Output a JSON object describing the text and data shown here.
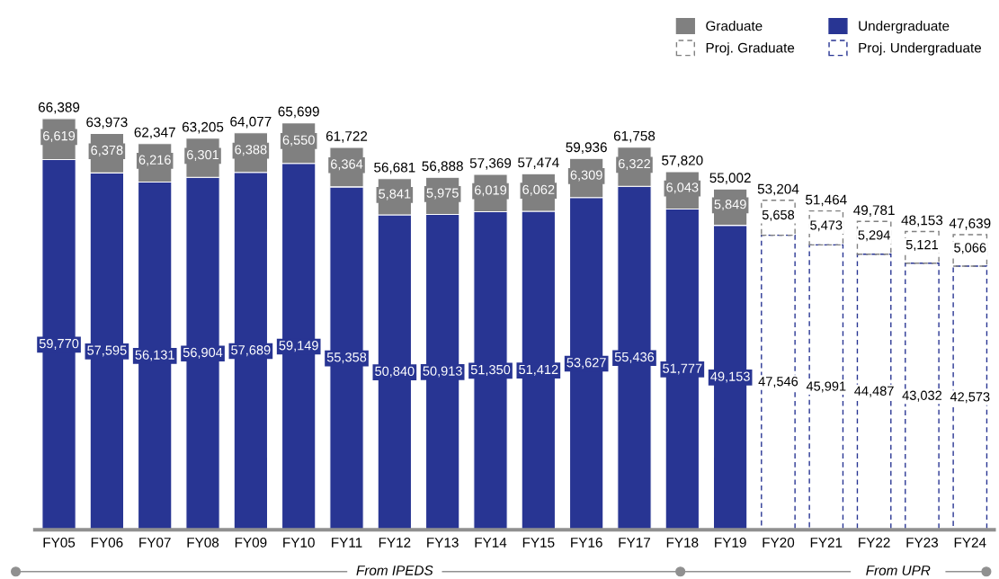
{
  "chart_data": {
    "type": "bar",
    "stacked": true,
    "legend": "top right",
    "grid": false,
    "categories": [
      "FY05",
      "FY06",
      "FY07",
      "FY08",
      "FY09",
      "FY10",
      "FY11",
      "FY12",
      "FY13",
      "FY14",
      "FY15",
      "FY16",
      "FY17",
      "FY18",
      "FY19",
      "FY20",
      "FY21",
      "FY22",
      "FY23",
      "FY24"
    ],
    "series": [
      {
        "name": "Undergraduate",
        "color": "#283593",
        "line_style": "solid",
        "values": [
          59770,
          57595,
          56131,
          56904,
          57689,
          59149,
          55358,
          50840,
          50913,
          51350,
          51412,
          53627,
          55436,
          51777,
          49153,
          null,
          null,
          null,
          null,
          null
        ],
        "value_labels": [
          "59,770",
          "57,595",
          "56,131",
          "56,904",
          "57,689",
          "59,149",
          "55,358",
          "50,840",
          "50,913",
          "51,350",
          "51,412",
          "53,627",
          "55,436",
          "51,777",
          "49,153",
          null,
          null,
          null,
          null,
          null
        ]
      },
      {
        "name": "Graduate",
        "color": "#808080",
        "line_style": "solid",
        "values": [
          6619,
          6378,
          6216,
          6301,
          6388,
          6550,
          6364,
          5841,
          5975,
          6019,
          6062,
          6309,
          6322,
          6043,
          5849,
          null,
          null,
          null,
          null,
          null
        ],
        "value_labels": [
          "6,619",
          "6,378",
          "6,216",
          "6,301",
          "6,388",
          "6,550",
          "6,364",
          "5,841",
          "5,975",
          "6,019",
          "6,062",
          "6,309",
          "6,322",
          "6,043",
          "5,849",
          null,
          null,
          null,
          null,
          null
        ]
      },
      {
        "name": "Proj. Undergraduate",
        "color": "#283593",
        "line_style": "dashed",
        "values": [
          null,
          null,
          null,
          null,
          null,
          null,
          null,
          null,
          null,
          null,
          null,
          null,
          null,
          null,
          null,
          47546,
          45991,
          44487,
          43032,
          42573
        ],
        "value_labels": [
          null,
          null,
          null,
          null,
          null,
          null,
          null,
          null,
          null,
          null,
          null,
          null,
          null,
          null,
          null,
          "47,546",
          "45,991",
          "44,487",
          "43,032",
          "42,573"
        ]
      },
      {
        "name": "Proj. Graduate",
        "color": "#808080",
        "line_style": "dashed",
        "values": [
          null,
          null,
          null,
          null,
          null,
          null,
          null,
          null,
          null,
          null,
          null,
          null,
          null,
          null,
          null,
          5658,
          5473,
          5294,
          5121,
          5066
        ],
        "value_labels": [
          null,
          null,
          null,
          null,
          null,
          null,
          null,
          null,
          null,
          null,
          null,
          null,
          null,
          null,
          null,
          "5,658",
          "5,473",
          "5,294",
          "5,121",
          "5,066"
        ]
      }
    ],
    "totals": [
      "66,389",
      "63,973",
      "62,347",
      "63,205",
      "64,077",
      "65,699",
      "61,722",
      "56,681",
      "56,888",
      "57,369",
      "57,474",
      "59,936",
      "61,758",
      "57,820",
      "55,002",
      "53,204",
      "51,464",
      "49,781",
      "48,153",
      "47,639"
    ],
    "annotations": [
      "From IPEDS",
      "From UPR"
    ]
  }
}
